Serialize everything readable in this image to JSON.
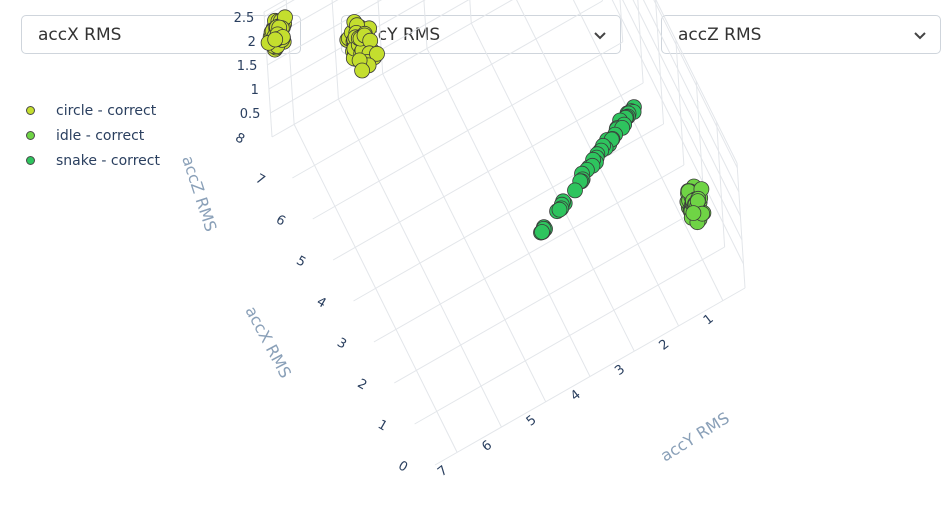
{
  "controls": {
    "x_select": "accX RMS",
    "y_select": "accY RMS",
    "z_select": "accZ RMS"
  },
  "colors": {
    "circle": "#c4de2e",
    "idle": "#6fd445",
    "snake": "#2ec45e",
    "grid": "#e3e6ea",
    "axis_title": "#8aa0b8"
  },
  "chart_data": {
    "type": "scatter",
    "mode": "3d",
    "xlabel": "accX RMS",
    "ylabel": "accY RMS",
    "zlabel": "accZ RMS",
    "xlim": [
      0,
      8
    ],
    "ylim": [
      0.5,
      7.5
    ],
    "zlim": [
      0,
      2.6
    ],
    "x_ticks": [
      "0",
      "1",
      "2",
      "3",
      "4",
      "5",
      "6",
      "7",
      "8"
    ],
    "y_ticks": [
      "1",
      "2",
      "3",
      "4",
      "5",
      "6",
      "7"
    ],
    "z_ticks": [
      "0.5",
      "1",
      "1.5",
      "2",
      "2.5"
    ],
    "legend_position": "top-left",
    "series": [
      {
        "name": "circle - correct",
        "clusters": [
          {
            "x": 7.9,
            "y": 7.3,
            "z": 2.1,
            "sx": 0.25,
            "sy": 0.25,
            "sz": 0.35,
            "n": 55
          },
          {
            "x": 7.4,
            "y": 5.7,
            "z": 1.5,
            "sx": 0.4,
            "sy": 0.35,
            "sz": 0.55,
            "n": 65
          }
        ]
      },
      {
        "name": "idle - correct",
        "clusters": [
          {
            "x": 1.2,
            "y": 1.0,
            "z": 1.0,
            "sx": 0.3,
            "sy": 0.2,
            "sz": 0.45,
            "n": 55
          }
        ]
      },
      {
        "name": "snake - correct",
        "clusters": [
          {
            "x": 3.0,
            "y": 2.6,
            "z": 1.0,
            "sx": 0.35,
            "sy": 0.7,
            "sz": 0.1,
            "line": true,
            "n": 50
          }
        ]
      }
    ]
  }
}
